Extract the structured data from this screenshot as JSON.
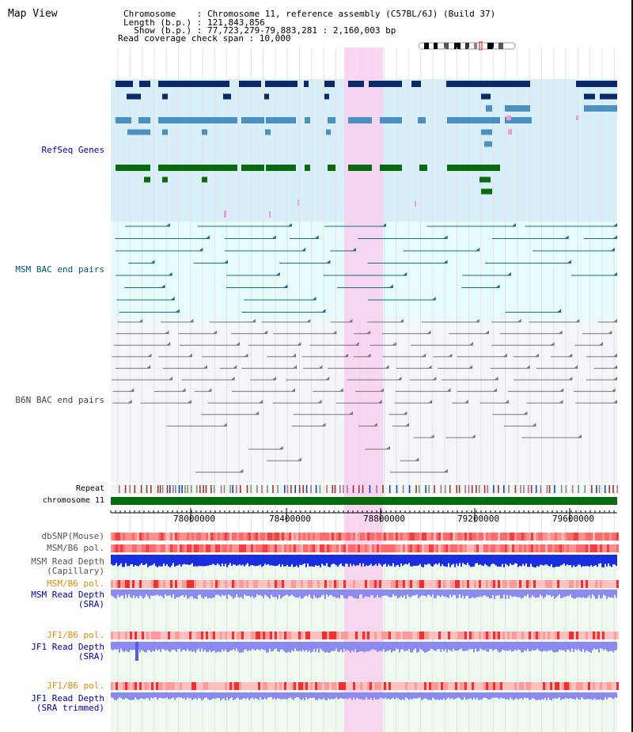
{
  "title": "Map View",
  "info": {
    "chromosome": "Chromosome    : Chromosome 11, reference assembly (C57BL/6J) (Build 37)",
    "length": "Length (b.p.) : 121,843,856",
    "show": "  Show (b.p.) : 77,723,279-79,883,281 : 2,160,003 bp",
    "coverage": "Read coverage check span : 10,000"
  },
  "tracks": {
    "refseq": "RefSeq Genes",
    "msm_bac": "MSM BAC end pairs",
    "b6n_bac": "B6N BAC end pairs",
    "repeat": "Repeat",
    "chromosome": "chromosome 11",
    "dbsnp": "dbSNP(Mouse)",
    "msm_b6_pol": "MSM/B6 pol.",
    "msm_depth_cap_1": "MSM Read Depth",
    "msm_depth_cap_2": "(Capillary)",
    "msm_b6_pol_2": "MSM/B6 pol.",
    "msm_depth_sra_1": "MSM Read Depth",
    "msm_depth_sra_2": "(SRA)",
    "jf1_b6_pol": "JF1/B6 pol.",
    "jf1_depth_sra_1": "JF1 Read Depth",
    "jf1_depth_sra_2": "(SRA)",
    "jf1_b6_pol_2": "JF1/B6 pol.",
    "jf1_depth_trim_1": "JF1 Read Depth",
    "jf1_depth_trim_2": "(SRA trimmed)"
  },
  "axis_ticks": [
    "78000000",
    "78400000",
    "78800000",
    "79200000",
    "79600000"
  ],
  "colors": {
    "label_blue": "#0000aa",
    "label_orange": "#e08a00",
    "highlight": "#f8d0f0",
    "refseq_bg": "#d8eef8",
    "msm_bg": "#e6fbfb",
    "b6n_bg": "#f2f5f9"
  }
}
